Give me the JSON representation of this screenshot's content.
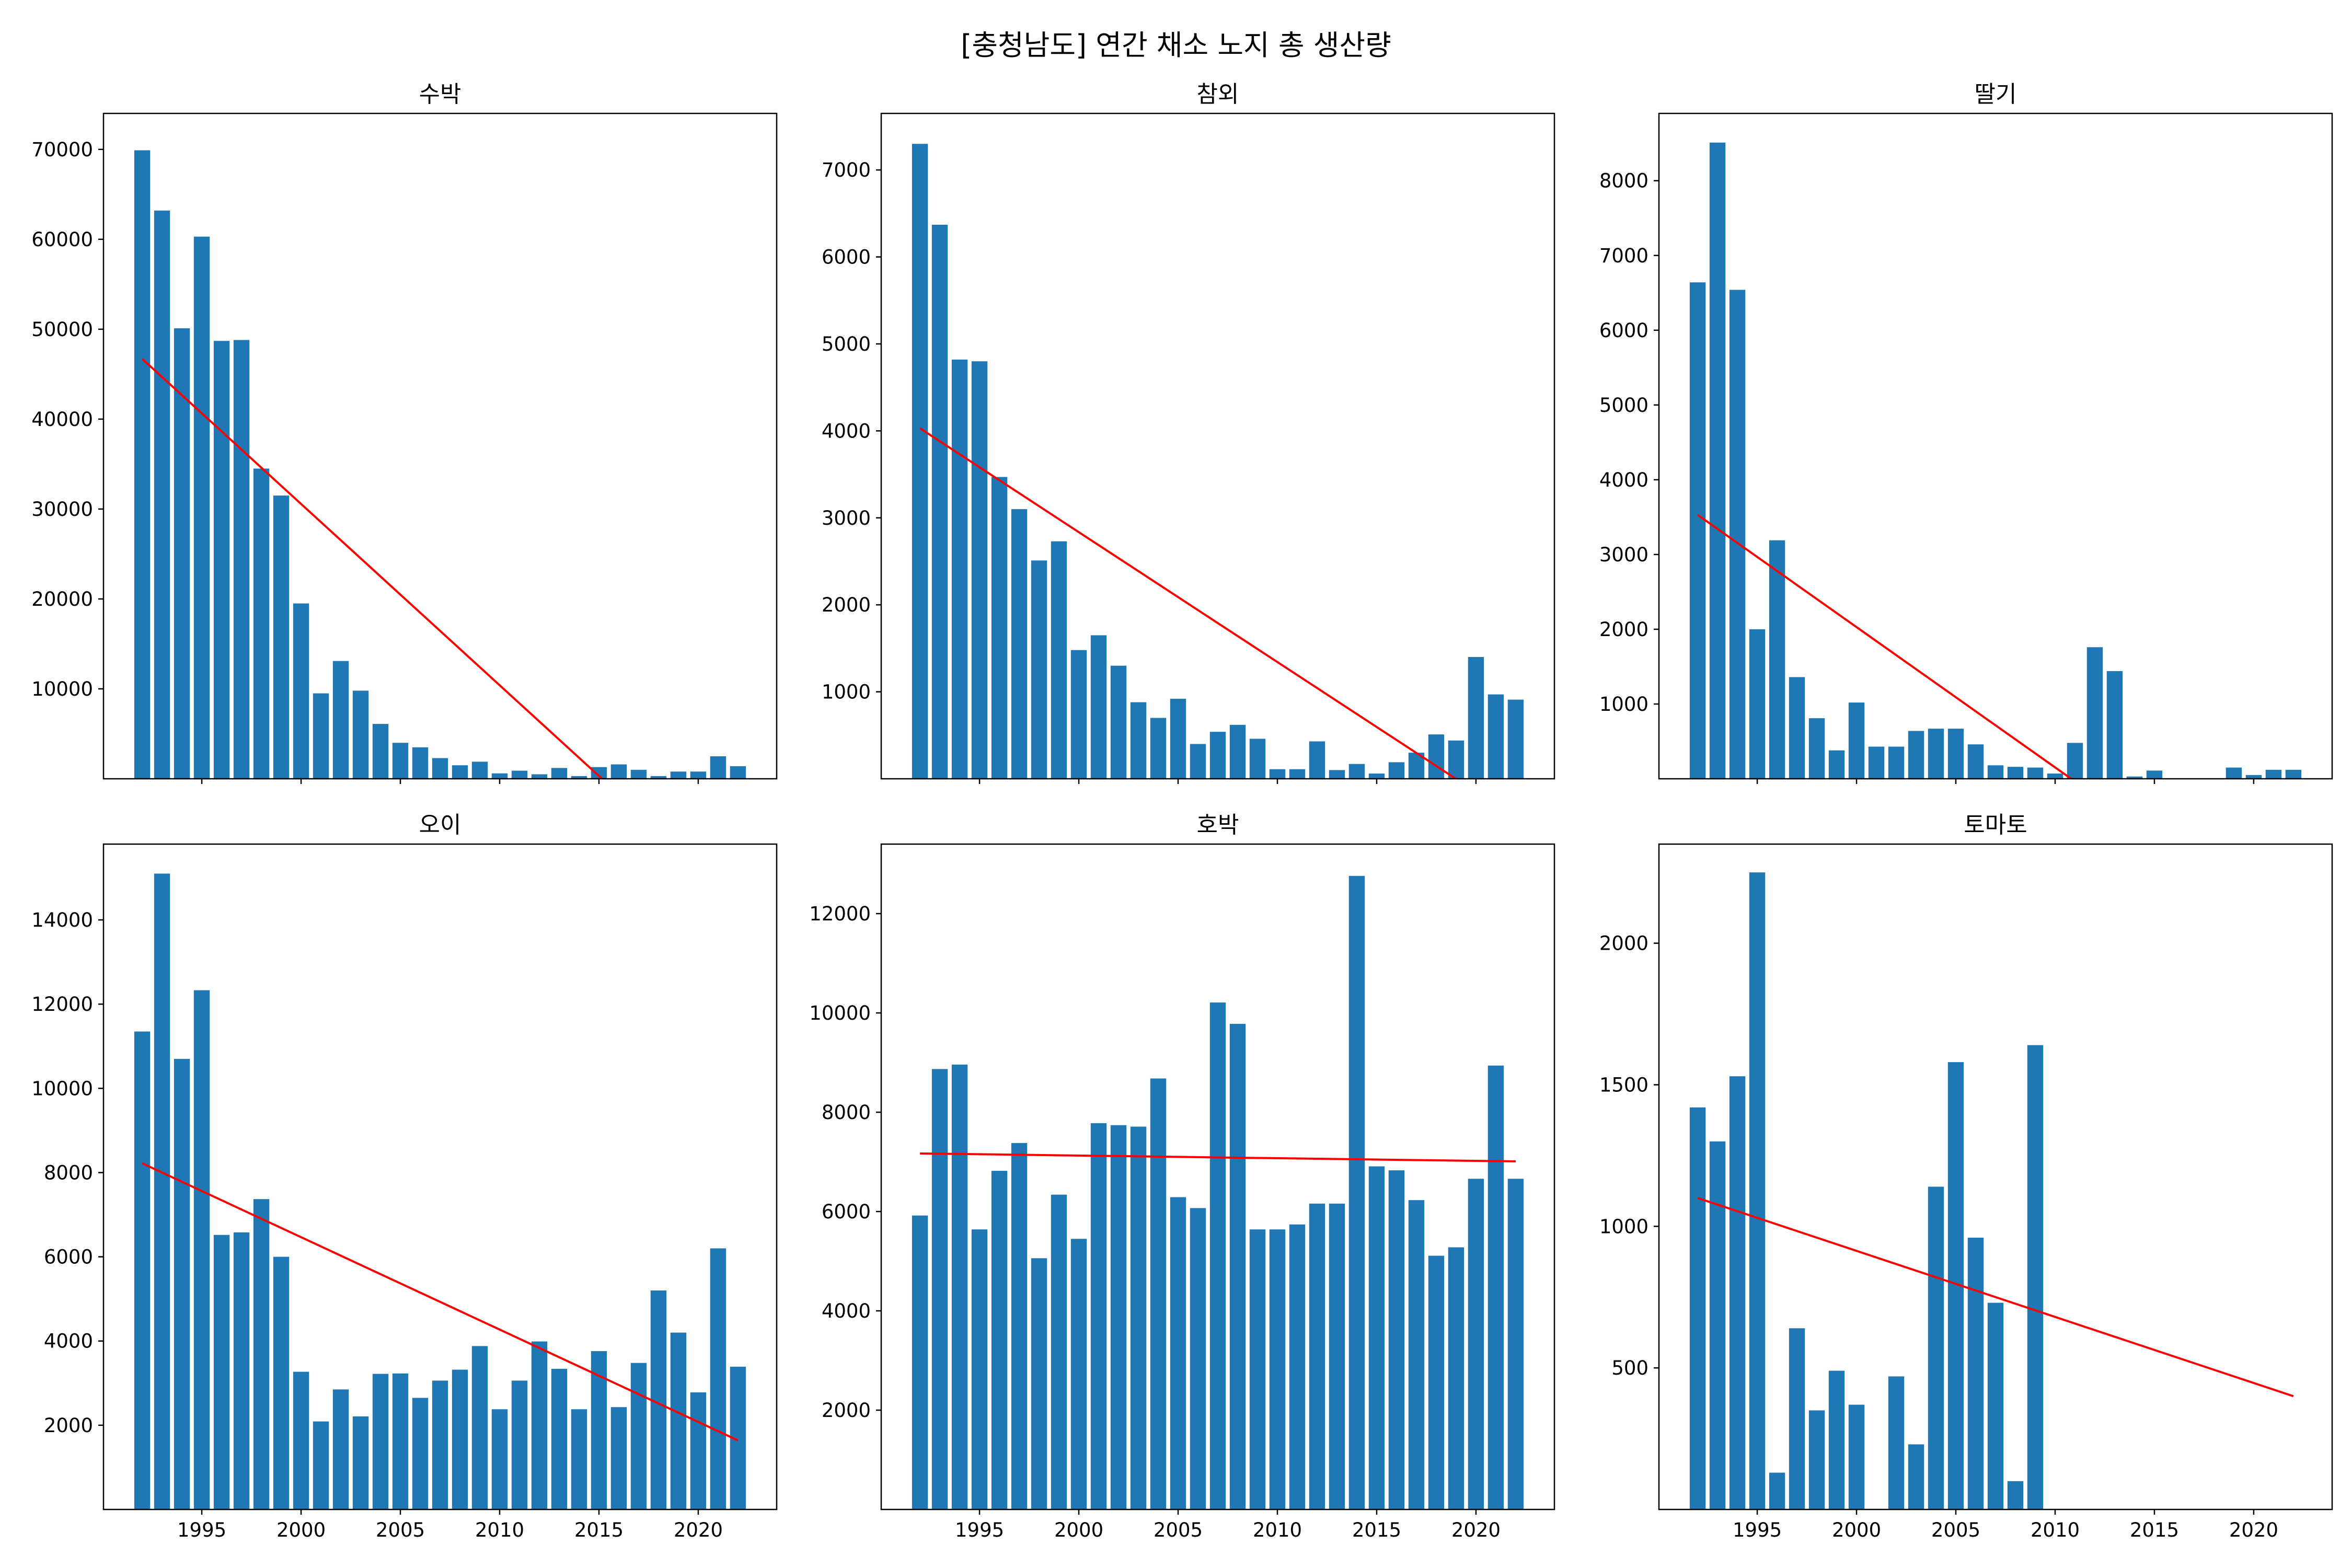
{
  "figure": {
    "title": "[충청남도] 연간 채소 노지 총 생산량"
  },
  "chart_data": [
    {
      "type": "bar",
      "title": "수박",
      "x": [
        1992,
        1993,
        1994,
        1995,
        1996,
        1997,
        1998,
        1999,
        2000,
        2001,
        2002,
        2003,
        2004,
        2005,
        2006,
        2007,
        2008,
        2009,
        2010,
        2011,
        2012,
        2013,
        2014,
        2015,
        2016,
        2017,
        2018,
        2019,
        2020,
        2021,
        2022
      ],
      "values": [
        69900,
        63200,
        50100,
        60300,
        48700,
        48800,
        34500,
        31500,
        19500,
        9500,
        13100,
        9800,
        6100,
        4000,
        3500,
        2300,
        1500,
        1900,
        600,
        900,
        500,
        1200,
        300,
        1300,
        1600,
        1000,
        300,
        800,
        800,
        2500,
        1400
      ],
      "trend": {
        "start": [
          1992,
          46700
        ],
        "end": [
          2022,
          -13800
        ],
        "color": "#ff0000"
      },
      "yticks": [
        10000,
        20000,
        30000,
        40000,
        50000,
        60000,
        70000
      ],
      "ylim": [
        0,
        74000
      ],
      "xticks": [
        1995,
        2000,
        2005,
        2010,
        2015,
        2020
      ],
      "show_xtick_labels": false,
      "bar_color": "#1f77b4"
    },
    {
      "type": "bar",
      "title": "참외",
      "x": [
        1992,
        1993,
        1994,
        1995,
        1996,
        1997,
        1998,
        1999,
        2000,
        2001,
        2002,
        2003,
        2004,
        2005,
        2006,
        2007,
        2008,
        2009,
        2010,
        2011,
        2012,
        2013,
        2014,
        2015,
        2016,
        2017,
        2018,
        2019,
        2020,
        2021,
        2022
      ],
      "values": [
        7300,
        6370,
        4820,
        4800,
        3470,
        3100,
        2510,
        2730,
        1480,
        1650,
        1300,
        880,
        700,
        920,
        400,
        540,
        620,
        460,
        110,
        110,
        430,
        100,
        170,
        60,
        190,
        300,
        510,
        440,
        1400,
        970,
        910
      ],
      "trend": {
        "start": [
          1992,
          4030
        ],
        "end": [
          2022,
          -450
        ],
        "color": "#ff0000"
      },
      "yticks": [
        1000,
        2000,
        3000,
        4000,
        5000,
        6000,
        7000
      ],
      "ylim": [
        0,
        7650
      ],
      "xticks": [
        1995,
        2000,
        2005,
        2010,
        2015,
        2020
      ],
      "show_xtick_labels": false,
      "bar_color": "#1f77b4"
    },
    {
      "type": "bar",
      "title": "딸기",
      "x": [
        1992,
        1993,
        1994,
        1995,
        1996,
        1997,
        1998,
        1999,
        2000,
        2001,
        2002,
        2003,
        2004,
        2005,
        2006,
        2007,
        2008,
        2009,
        2010,
        2011,
        2012,
        2013,
        2014,
        2015,
        2016,
        2017,
        2018,
        2019,
        2020,
        2021,
        2022
      ],
      "values": [
        6640,
        8510,
        6540,
        2000,
        3190,
        1360,
        810,
        380,
        1020,
        430,
        430,
        640,
        670,
        670,
        460,
        180,
        160,
        150,
        70,
        480,
        1760,
        1440,
        30,
        110,
        0,
        0,
        0,
        150,
        50,
        120,
        120
      ],
      "trend": {
        "start": [
          1992,
          3530
        ],
        "end": [
          2022,
          -2100
        ],
        "color": "#ff0000"
      },
      "yticks": [
        1000,
        2000,
        3000,
        4000,
        5000,
        6000,
        7000,
        8000
      ],
      "ylim": [
        0,
        8900
      ],
      "xticks": [
        1995,
        2000,
        2005,
        2010,
        2015,
        2020
      ],
      "show_xtick_labels": false,
      "bar_color": "#1f77b4"
    },
    {
      "type": "bar",
      "title": "오이",
      "x": [
        1992,
        1993,
        1994,
        1995,
        1996,
        1997,
        1998,
        1999,
        2000,
        2001,
        2002,
        2003,
        2004,
        2005,
        2006,
        2007,
        2008,
        2009,
        2010,
        2011,
        2012,
        2013,
        2014,
        2015,
        2016,
        2017,
        2018,
        2019,
        2020,
        2021,
        2022
      ],
      "values": [
        11350,
        15100,
        10700,
        12330,
        6520,
        6580,
        7370,
        6000,
        3270,
        2090,
        2850,
        2210,
        3220,
        3230,
        2650,
        3060,
        3320,
        3880,
        2380,
        3060,
        3990,
        3340,
        2380,
        3760,
        2430,
        3480,
        5200,
        4200,
        2780,
        6200,
        3390
      ],
      "trend": {
        "start": [
          1992,
          8220
        ],
        "end": [
          2022,
          1640
        ],
        "color": "#ff0000"
      },
      "yticks": [
        2000,
        4000,
        6000,
        8000,
        10000,
        12000,
        14000
      ],
      "ylim": [
        0,
        15800
      ],
      "xticks": [
        1995,
        2000,
        2005,
        2010,
        2015,
        2020
      ],
      "show_xtick_labels": true,
      "bar_color": "#1f77b4"
    },
    {
      "type": "bar",
      "title": "호박",
      "x": [
        1992,
        1993,
        1994,
        1995,
        1996,
        1997,
        1998,
        1999,
        2000,
        2001,
        2002,
        2003,
        2004,
        2005,
        2006,
        2007,
        2008,
        2009,
        2010,
        2011,
        2012,
        2013,
        2014,
        2015,
        2016,
        2017,
        2018,
        2019,
        2020,
        2021,
        2022
      ],
      "values": [
        5920,
        8870,
        8960,
        5640,
        6820,
        7380,
        5060,
        6340,
        5450,
        7780,
        7740,
        7710,
        8680,
        6290,
        6070,
        10210,
        9780,
        5640,
        5640,
        5740,
        6160,
        6160,
        12760,
        6910,
        6830,
        6230,
        5110,
        5280,
        6660,
        8940,
        6660
      ],
      "trend": {
        "start": [
          1992,
          7170
        ],
        "end": [
          2022,
          7010
        ],
        "color": "#ff0000"
      },
      "yticks": [
        2000,
        4000,
        6000,
        8000,
        10000,
        12000
      ],
      "ylim": [
        0,
        13400
      ],
      "xticks": [
        1995,
        2000,
        2005,
        2010,
        2015,
        2020
      ],
      "show_xtick_labels": true,
      "bar_color": "#1f77b4"
    },
    {
      "type": "bar",
      "title": "토마토",
      "x": [
        1992,
        1993,
        1994,
        1995,
        1996,
        1997,
        1998,
        1999,
        2000,
        2001,
        2002,
        2003,
        2004,
        2005,
        2006,
        2007,
        2008,
        2009,
        2010,
        2011,
        2012,
        2013,
        2014,
        2015,
        2016,
        2017,
        2018,
        2019,
        2020,
        2021,
        2022
      ],
      "values": [
        1420,
        1300,
        1530,
        2250,
        130,
        640,
        350,
        490,
        370,
        0,
        470,
        230,
        1140,
        1580,
        960,
        730,
        100,
        1640,
        0,
        0,
        0,
        0,
        0,
        0,
        0,
        0,
        0,
        0,
        0,
        0,
        0
      ],
      "trend": {
        "start": [
          1992,
          1100
        ],
        "end": [
          2022,
          400
        ],
        "color": "#ff0000"
      },
      "yticks": [
        500,
        1000,
        1500,
        2000
      ],
      "ylim": [
        0,
        2350
      ],
      "xticks": [
        1995,
        2000,
        2005,
        2010,
        2015,
        2020
      ],
      "show_xtick_labels": true,
      "bar_color": "#1f77b4"
    }
  ]
}
